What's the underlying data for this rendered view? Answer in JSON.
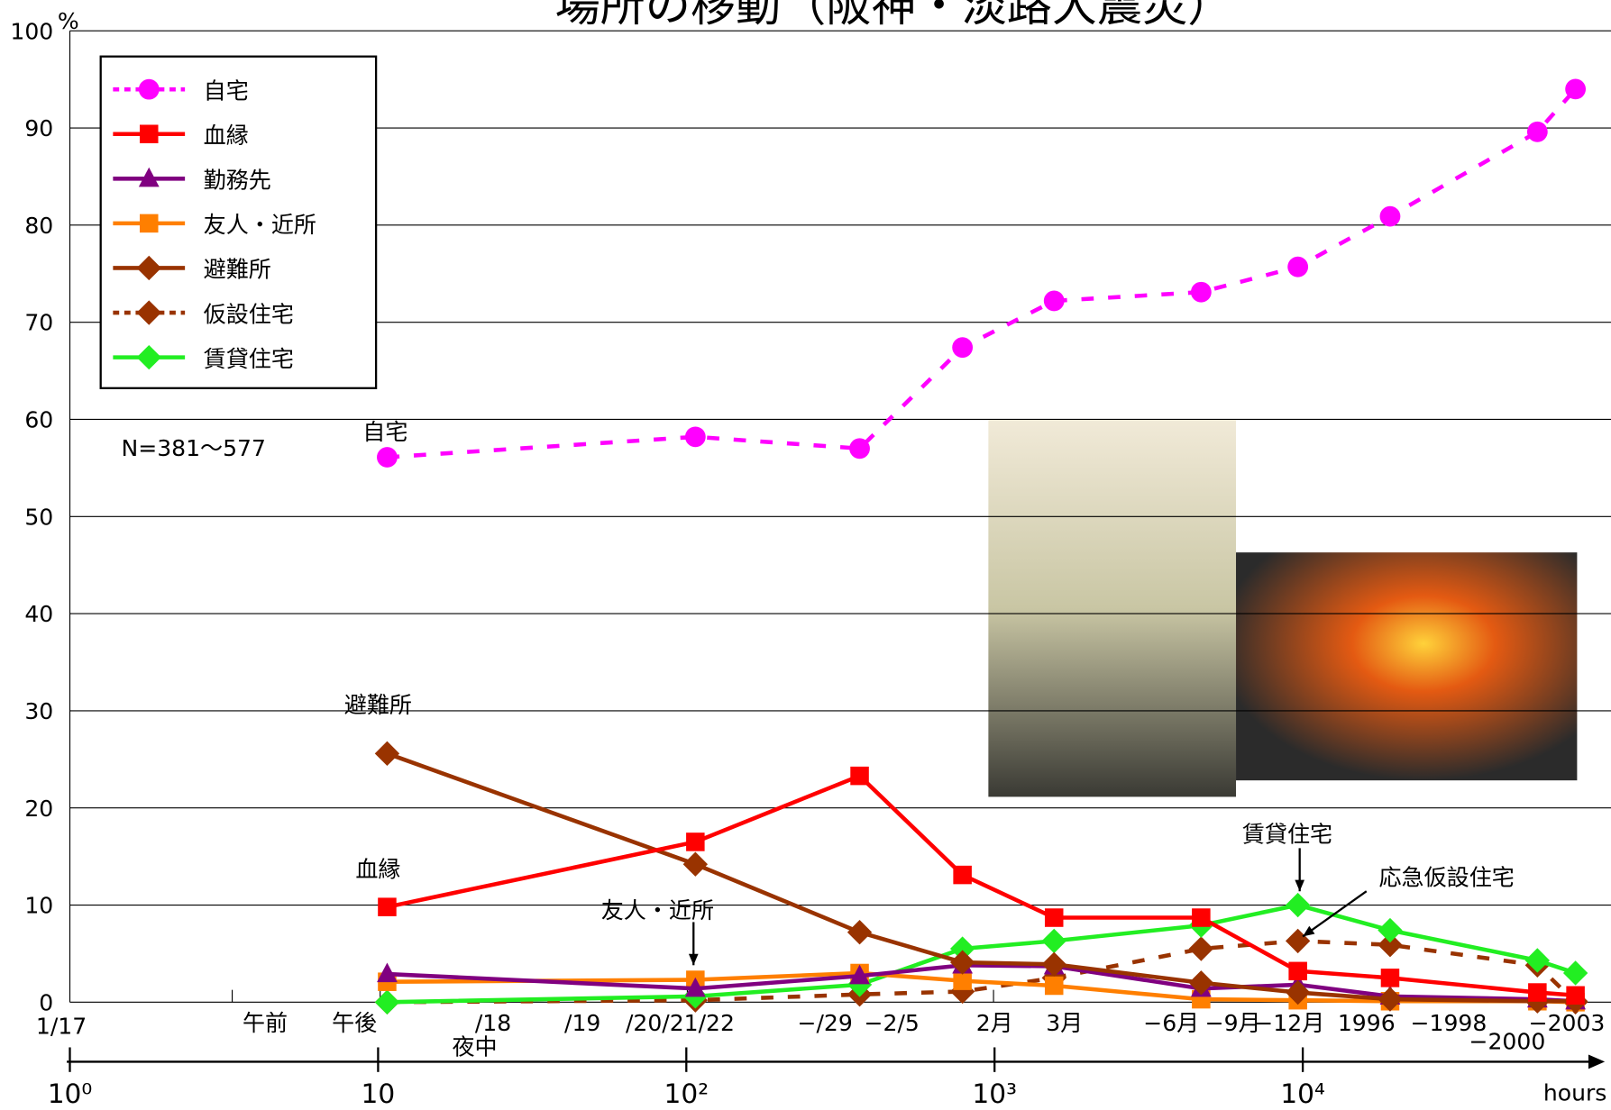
{
  "chart_data": {
    "type": "line",
    "title": "場所の移動（阪神・淡路大震災）",
    "x": [
      10.7,
      107,
      365,
      787,
      1560,
      4680,
      9640,
      19200,
      57700,
      76700
    ],
    "xlim": [
      1,
      100000
    ],
    "xlog": true,
    "xticks": [
      {
        "value": 1,
        "label": "10⁰"
      },
      10,
      {
        "value": 100,
        "label": "10²"
      },
      {
        "value": 1000,
        "label": "10³"
      },
      {
        "value": 10000,
        "label": "10⁴"
      }
    ],
    "x_label": "hours",
    "ylim": [
      0,
      100
    ],
    "yticks": [
      0,
      10,
      20,
      30,
      40,
      50,
      60,
      70,
      80,
      90,
      100
    ],
    "y_unit": "%",
    "grid": true,
    "note": "N=381～577",
    "period_labels": [
      "1/17",
      "午前",
      "午後",
      "/18",
      "/19",
      "/20/21/22",
      "−/29",
      "−2/5",
      "2月",
      "3月",
      "−6月",
      "−9月",
      "−12月",
      "1996",
      "−1998",
      "−2000",
      "−2003",
      "夜中"
    ],
    "annotations": [
      "自宅",
      "避難所",
      "血縁",
      "友人・近所",
      "賃貸住宅",
      "応急仮設住宅"
    ],
    "series": [
      {
        "name": "自宅",
        "color": "#ff00ff",
        "marker": "circle",
        "dashed": true,
        "values": [
          56.1,
          58.2,
          57.0,
          67.4,
          72.2,
          73.1,
          75.7,
          80.9,
          89.6,
          94.0
        ]
      },
      {
        "name": "血縁",
        "color": "#ff0000",
        "marker": "square",
        "dashed": false,
        "values": [
          9.8,
          16.5,
          23.3,
          13.1,
          8.7,
          8.7,
          3.2,
          2.5,
          1.0,
          0.7
        ]
      },
      {
        "name": "勤務先",
        "color": "#800080",
        "marker": "triangle",
        "dashed": false,
        "values": [
          2.9,
          1.4,
          2.7,
          3.8,
          3.7,
          1.4,
          1.8,
          0.6,
          0.3,
          0.1
        ]
      },
      {
        "name": "友人・近所",
        "color": "#ff7f00",
        "marker": "square",
        "dashed": false,
        "values": [
          2.1,
          2.3,
          3.0,
          2.2,
          1.7,
          0.3,
          0.2,
          0.1,
          0.1,
          0
        ]
      },
      {
        "name": "避難所",
        "color": "#993300",
        "marker": "diamond",
        "dashed": false,
        "values": [
          25.6,
          14.2,
          7.2,
          4.1,
          3.9,
          2.0,
          1.0,
          0.3,
          0.1,
          0.1
        ]
      },
      {
        "name": "仮設住宅",
        "color": "#993300",
        "marker": "diamond",
        "dashed": true,
        "values": [
          0,
          0.2,
          0.8,
          1.1,
          2.5,
          5.5,
          6.3,
          5.9,
          3.8,
          0
        ]
      },
      {
        "name": "賃貸住宅",
        "color": "#22ee22",
        "marker": "diamond",
        "dashed": false,
        "values": [
          0,
          0.6,
          1.8,
          5.5,
          6.3,
          7.9,
          10.0,
          7.4,
          4.3,
          3.0
        ]
      }
    ]
  }
}
